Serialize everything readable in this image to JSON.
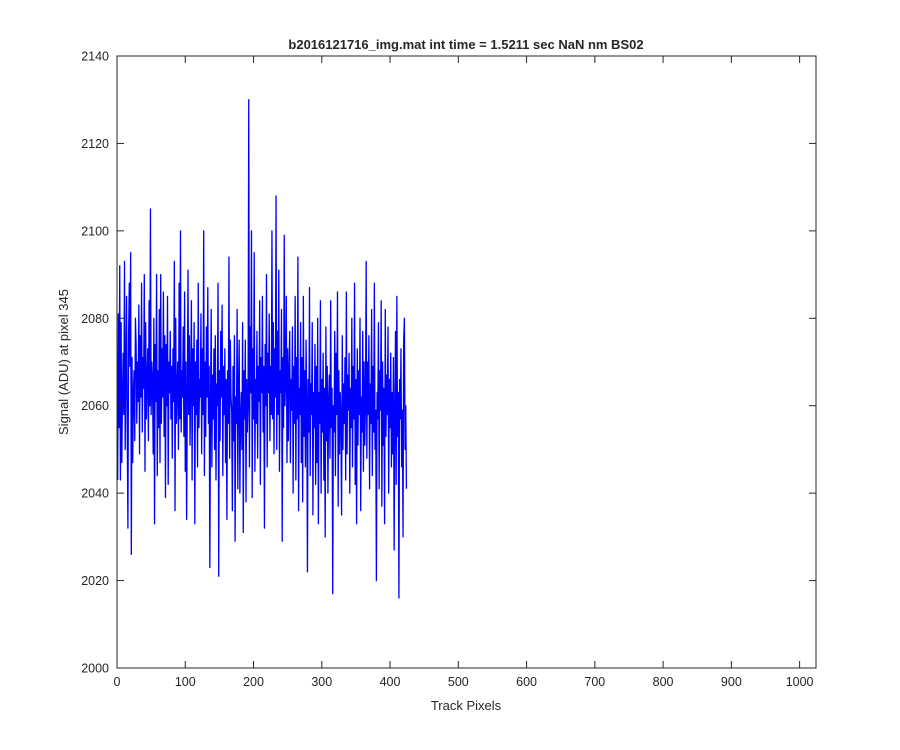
{
  "chart_data": {
    "type": "line",
    "title": "b2016121716_img.mat int time = 1.5211 sec  NaN nm BS02",
    "xlabel": "Track Pixels",
    "ylabel": "Signal (ADU) at pixel 345",
    "xlim": [
      0,
      1024
    ],
    "ylim": [
      2000,
      2140
    ],
    "x_ticks": [
      0,
      100,
      200,
      300,
      400,
      500,
      600,
      700,
      800,
      900,
      1000
    ],
    "y_ticks": [
      2000,
      2020,
      2040,
      2060,
      2080,
      2100,
      2120,
      2140
    ],
    "grid": false,
    "legend": "none",
    "line_color": "#0000ff",
    "series": [
      {
        "x_start": 1,
        "x_step": 1,
        "values": [
          2043,
          2081,
          2055,
          2092,
          2043,
          2079,
          2047,
          2061,
          2072,
          2058,
          2093,
          2050,
          2067,
          2085,
          2054,
          2032,
          2076,
          2088,
          2069,
          2095,
          2026,
          2071,
          2047,
          2063,
          2068,
          2052,
          2080,
          2074,
          2056,
          2070,
          2061,
          2083,
          2049,
          2076,
          2062,
          2088,
          2054,
          2071,
          2064,
          2090,
          2045,
          2079,
          2057,
          2066,
          2073,
          2052,
          2084,
          2060,
          2105,
          2058,
          2070,
          2066,
          2049,
          2080,
          2033,
          2074,
          2061,
          2090,
          2044,
          2068,
          2055,
          2082,
          2047,
          2090,
          2056,
          2073,
          2062,
          2086,
          2053,
          2076,
          2039,
          2074,
          2060,
          2085,
          2042,
          2070,
          2063,
          2077,
          2057,
          2069,
          2048,
          2073,
          2061,
          2093,
          2036,
          2080,
          2056,
          2064,
          2070,
          2050,
          2088,
          2057,
          2100,
          2054,
          2068,
          2062,
          2078,
          2053,
          2086,
          2045,
          2070,
          2034,
          2062,
          2091,
          2058,
          2076,
          2051,
          2066,
          2084,
          2043,
          2073,
          2060,
          2079,
          2033,
          2070,
          2058,
          2075,
          2046,
          2088,
          2055,
          2066,
          2062,
          2081,
          2049,
          2073,
          2058,
          2100,
          2044,
          2070,
          2053,
          2078,
          2062,
          2087,
          2056,
          2069,
          2023,
          2060,
          2082,
          2046,
          2067,
          2057,
          2073,
          2050,
          2076,
          2043,
          2065,
          2060,
          2088,
          2021,
          2068,
          2052,
          2077,
          2062,
          2083,
          2044,
          2069,
          2058,
          2073,
          2047,
          2066,
          2034,
          2068,
          2056,
          2094,
          2048,
          2075,
          2062,
          2059,
          2036,
          2069,
          2052,
          2076,
          2029,
          2062,
          2056,
          2082,
          2041,
          2064,
          2075,
          2040,
          2057,
          2063,
          2050,
          2079,
          2031,
          2068,
          2057,
          2075,
          2038,
          2066,
          2054,
          2060,
          2130,
          2046,
          2078,
          2063,
          2100,
          2039,
          2073,
          2057,
          2095,
          2045,
          2066,
          2056,
          2077,
          2048,
          2069,
          2061,
          2084,
          2042,
          2071,
          2063,
          2085,
          2054,
          2069,
          2032,
          2074,
          2060,
          2090,
          2046,
          2072,
          2063,
          2081,
          2052,
          2069,
          2058,
          2100,
          2057,
          2079,
          2049,
          2073,
          2062,
          2108,
          2050,
          2077,
          2058,
          2091,
          2045,
          2068,
          2063,
          2082,
          2029,
          2071,
          2055,
          2099,
          2060,
          2066,
          2085,
          2047,
          2073,
          2052,
          2068,
          2077,
          2047,
          2066,
          2059,
          2078,
          2040,
          2069,
          2056,
          2085,
          2043,
          2071,
          2057,
          2094,
          2036,
          2064,
          2058,
          2079,
          2047,
          2071,
          2038,
          2085,
          2053,
          2068,
          2046,
          2075,
          2061,
          2022,
          2066,
          2054,
          2087,
          2044,
          2065,
          2058,
          2079,
          2035,
          2063,
          2055,
          2074,
          2042,
          2069,
          2047,
          2080,
          2033,
          2063,
          2056,
          2084,
          2040,
          2066,
          2054,
          2072,
          2043,
          2064,
          2030,
          2078,
          2052,
          2069,
          2040,
          2061,
          2067,
          2048,
          2084,
          2055,
          2064,
          2017,
          2060,
          2054,
          2077,
          2044,
          2072,
          2058,
          2086,
          2037,
          2068,
          2049,
          2063,
          2058,
          2035,
          2076,
          2050,
          2065,
          2056,
          2071,
          2043,
          2086,
          2049,
          2067,
          2059,
          2072,
          2040,
          2064,
          2055,
          2080,
          2046,
          2069,
          2057,
          2088,
          2042,
          2066,
          2033,
          2073,
          2051,
          2068,
          2058,
          2080,
          2036,
          2062,
          2054,
          2077,
          2045,
          2070,
          2051,
          2060,
          2093,
          2048,
          2070,
          2058,
          2076,
          2041,
          2065,
          2056,
          2082,
          2044,
          2069,
          2054,
          2088,
          2050,
          2059,
          2020,
          2063,
          2057,
          2079,
          2041,
          2068,
          2059,
          2084,
          2037,
          2070,
          2051,
          2064,
          2033,
          2082,
          2053,
          2067,
          2058,
          2078,
          2040,
          2066,
          2055,
          2072,
          2046,
          2063,
          2049,
          2071,
          2027,
          2058,
          2077,
          2042,
          2085,
          2053,
          2063,
          2016,
          2066,
          2057,
          2073,
          2046,
          2059,
          2030,
          2075,
          2080,
          2050,
          2060,
          2041
        ]
      }
    ]
  }
}
